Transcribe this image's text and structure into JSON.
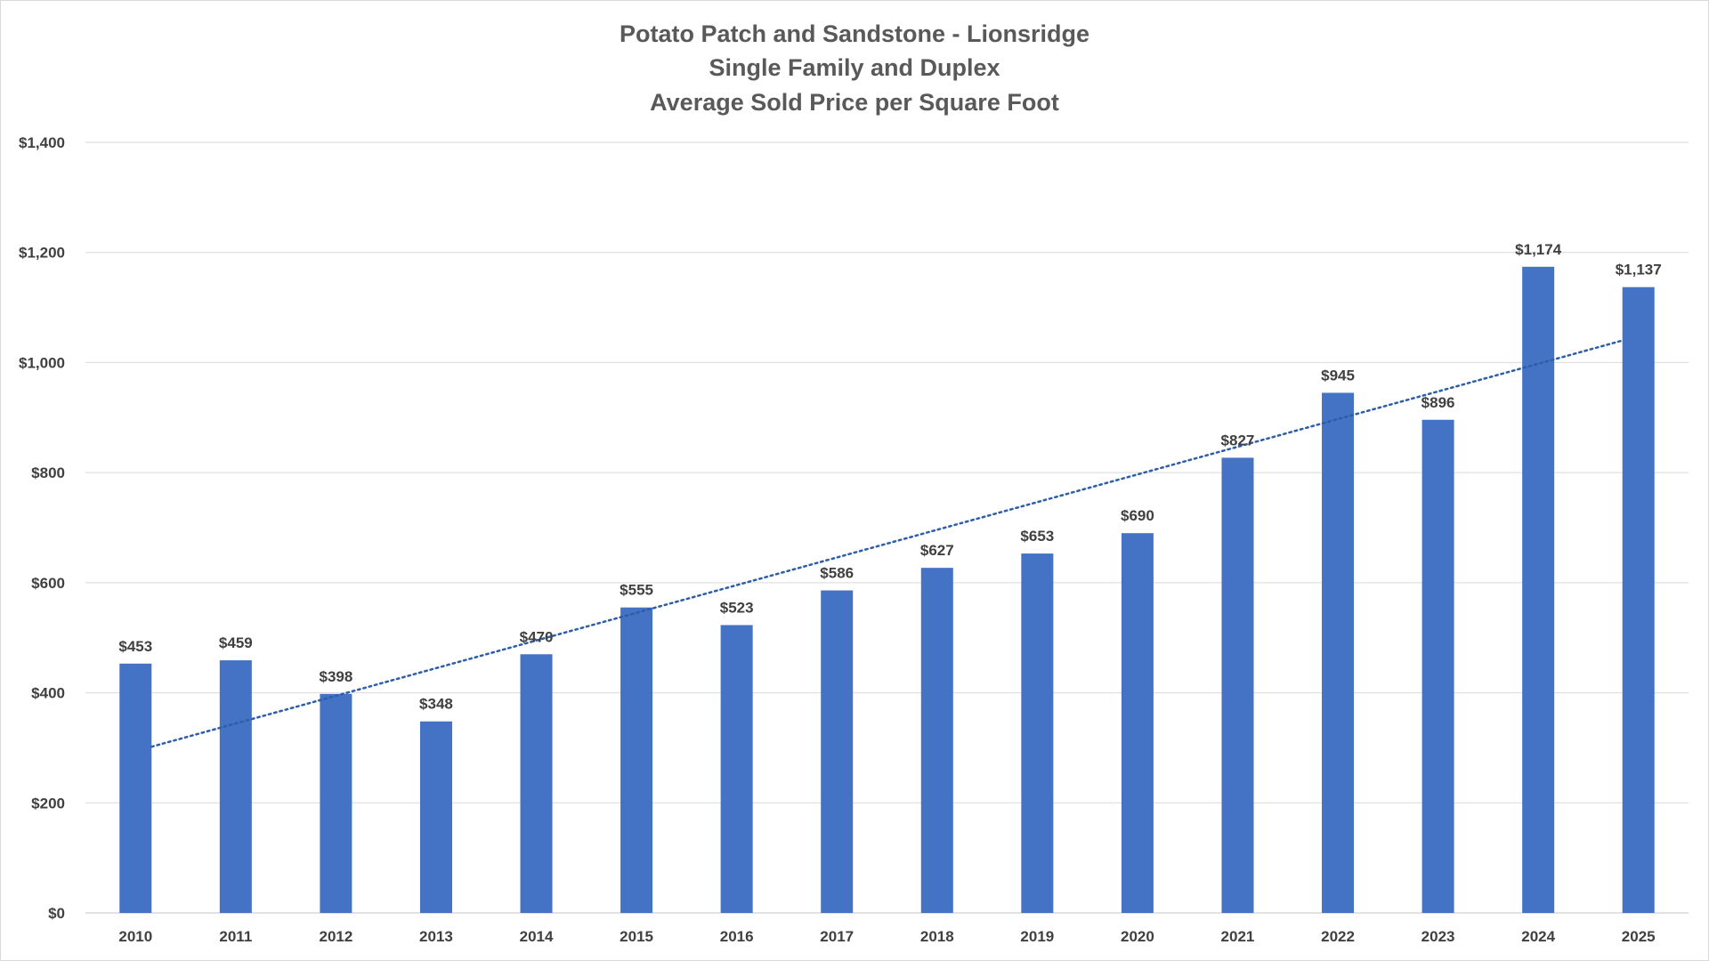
{
  "chart_data": {
    "type": "bar",
    "title": [
      "Potato Patch and Sandstone - Lionsridge",
      "Single Family and Duplex",
      "Average Sold Price per Square Foot"
    ],
    "xlabel": "",
    "ylabel": "",
    "categories": [
      "2010",
      "2011",
      "2012",
      "2013",
      "2014",
      "2015",
      "2016",
      "2017",
      "2018",
      "2019",
      "2020",
      "2021",
      "2022",
      "2023",
      "2024",
      "2025"
    ],
    "values": [
      453,
      459,
      398,
      348,
      470,
      555,
      523,
      586,
      627,
      653,
      690,
      827,
      945,
      896,
      1174,
      1137
    ],
    "data_labels": [
      "$453",
      "$459",
      "$398",
      "$348",
      "$470",
      "$555",
      "$523",
      "$586",
      "$627",
      "$653",
      "$690",
      "$827",
      "$945",
      "$896",
      "$1,174",
      "$1,137"
    ],
    "ylim": [
      0,
      1400
    ],
    "y_ticks": [
      0,
      200,
      400,
      600,
      800,
      1000,
      1200,
      1400
    ],
    "y_tick_labels": [
      "$0",
      "$200",
      "$400",
      "$600",
      "$800",
      "$1,000",
      "$1,200",
      "$1,400"
    ],
    "grid": true,
    "legend": "none",
    "trendline": {
      "type": "linear",
      "style": "dotted",
      "start_value": 302,
      "end_value": 1040
    },
    "colors": {
      "bar": "#4472C4",
      "trendline": "#2E5EA8",
      "gridline": "#d9d9d9",
      "title": "#595959",
      "tick_text": "#404040"
    }
  }
}
